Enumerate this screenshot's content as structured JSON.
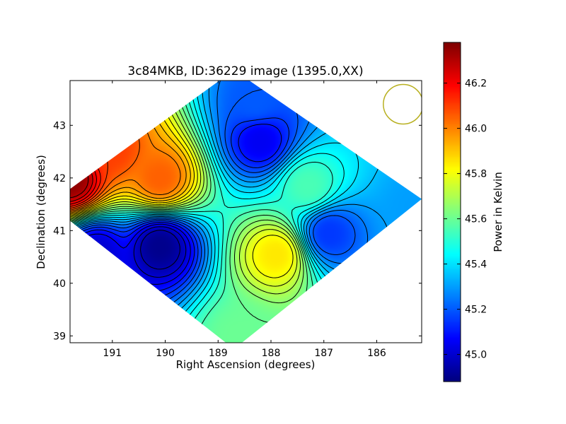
{
  "chart_data": {
    "type": "heatmap",
    "title": "3c84MKB, ID:36229 image (1395.0,XX)",
    "xlabel": "Right Ascension (degrees)",
    "ylabel": "Declination (degrees)",
    "xlim": [
      191.8,
      185.15
    ],
    "ylim": [
      38.87,
      43.85
    ],
    "x_axis_inverted": true,
    "x_ticks": [
      191,
      190,
      189,
      188,
      187,
      186
    ],
    "y_ticks": [
      39,
      40,
      41,
      42,
      43
    ],
    "x_tick_labels": [
      "191",
      "190",
      "189",
      "188",
      "187",
      "186"
    ],
    "y_tick_labels": [
      "39",
      "40",
      "41",
      "42",
      "43"
    ],
    "colormap": "jet",
    "colorbar": {
      "label": "Power in Kelvin",
      "range": [
        44.88,
        46.38
      ],
      "ticks": [
        45.0,
        45.2,
        45.4,
        45.6,
        45.8,
        46.0,
        46.2
      ],
      "tick_labels": [
        "45.0",
        "45.2",
        "45.4",
        "45.6",
        "45.8",
        "46.0",
        "46.2"
      ]
    },
    "mapped_region": {
      "shape": "diamond",
      "vertices_ra_dec": [
        [
          188.7,
          44.05
        ],
        [
          185.15,
          41.6
        ],
        [
          188.7,
          38.75
        ],
        [
          192.2,
          41.5
        ]
      ]
    },
    "features": [
      {
        "ra": 191.8,
        "dec": 41.98,
        "value": 46.36,
        "kind": "maximum"
      },
      {
        "ra": 190.1,
        "dec": 42.0,
        "value": 46.05,
        "kind": "ridge"
      },
      {
        "ra": 191.0,
        "dec": 42.55,
        "value": 46.1,
        "kind": "ridge"
      },
      {
        "ra": 190.1,
        "dec": 40.7,
        "value": 44.9,
        "kind": "minimum"
      },
      {
        "ra": 191.3,
        "dec": 40.6,
        "value": 45.0,
        "kind": "trough"
      },
      {
        "ra": 187.9,
        "dec": 40.55,
        "value": 45.85,
        "kind": "local maximum"
      },
      {
        "ra": 188.2,
        "dec": 42.7,
        "value": 45.05,
        "kind": "local minimum"
      },
      {
        "ra": 188.3,
        "dec": 43.45,
        "value": 45.2,
        "kind": "trough"
      },
      {
        "ra": 186.9,
        "dec": 40.95,
        "value": 45.15,
        "kind": "local minimum"
      },
      {
        "ra": 187.3,
        "dec": 41.85,
        "value": 45.55,
        "kind": "local maximum"
      },
      {
        "ra": 185.2,
        "dec": 41.4,
        "value": 45.3,
        "kind": "edge minimum"
      },
      {
        "ra": 188.6,
        "dec": 39.0,
        "value": 45.6,
        "kind": "lobe"
      }
    ],
    "beam": {
      "ra": 185.5,
      "dec": 43.4,
      "diameter_deg": 0.75,
      "color": "#b8b020"
    },
    "contour_levels": [
      44.9,
      44.95,
      45.0,
      45.05,
      45.1,
      45.15,
      45.2,
      45.25,
      45.3,
      45.35,
      45.4,
      45.45,
      45.5,
      45.55,
      45.6,
      45.65,
      45.7,
      45.75,
      45.8,
      45.85,
      45.9,
      45.95,
      46.0,
      46.05,
      46.1,
      46.15,
      46.2,
      46.25,
      46.3
    ],
    "grid": false
  }
}
